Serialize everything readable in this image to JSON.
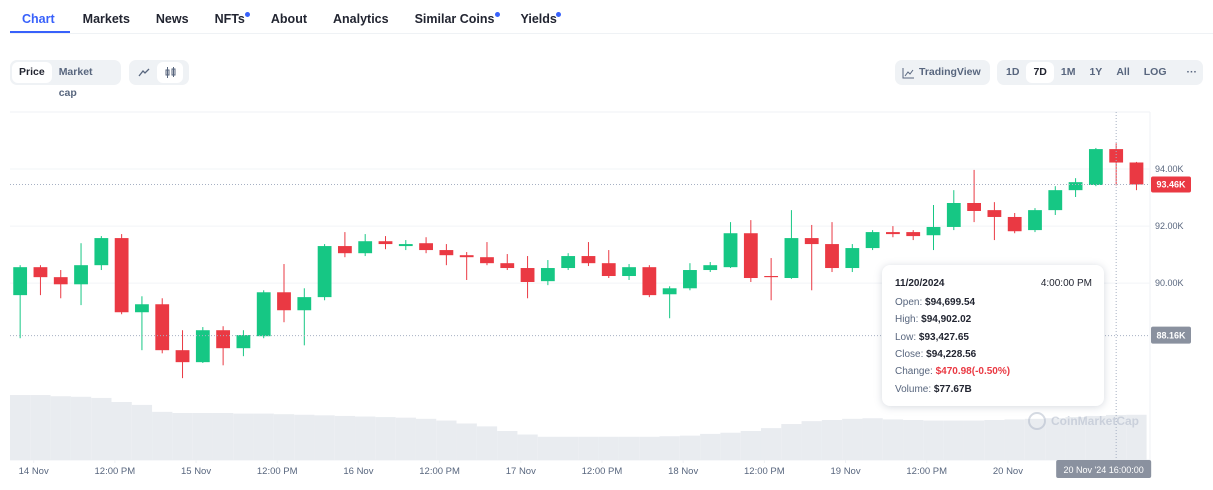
{
  "tabs": [
    {
      "label": "Chart",
      "active": true,
      "dot": false
    },
    {
      "label": "Markets",
      "active": false,
      "dot": false
    },
    {
      "label": "News",
      "active": false,
      "dot": false
    },
    {
      "label": "NFTs",
      "active": false,
      "dot": true
    },
    {
      "label": "About",
      "active": false,
      "dot": false
    },
    {
      "label": "Analytics",
      "active": false,
      "dot": false
    },
    {
      "label": "Similar Coins",
      "active": false,
      "dot": true
    },
    {
      "label": "Yields",
      "active": false,
      "dot": true
    }
  ],
  "toolbar": {
    "metric": [
      "Price",
      "Market cap"
    ],
    "tradingview": "TradingView",
    "ranges": [
      "1D",
      "7D",
      "1M",
      "1Y",
      "All",
      "LOG"
    ],
    "more": "···"
  },
  "chart_data": {
    "type": "candlestick",
    "x": [
      "2024-11-13T22:00",
      "2024-11-14T01:00",
      "2024-11-14T04:00",
      "2024-11-14T07:00",
      "2024-11-14T10:00",
      "2024-11-14T13:00",
      "2024-11-14T16:00",
      "2024-11-14T19:00",
      "2024-11-14T22:00",
      "2024-11-15T01:00",
      "2024-11-15T04:00",
      "2024-11-15T07:00",
      "2024-11-15T10:00",
      "2024-11-15T13:00",
      "2024-11-15T16:00",
      "2024-11-15T19:00",
      "2024-11-15T22:00",
      "2024-11-16T01:00",
      "2024-11-16T04:00",
      "2024-11-16T07:00",
      "2024-11-16T10:00",
      "2024-11-16T13:00",
      "2024-11-16T16:00",
      "2024-11-16T19:00",
      "2024-11-16T22:00",
      "2024-11-17T01:00",
      "2024-11-17T04:00",
      "2024-11-17T07:00",
      "2024-11-17T10:00",
      "2024-11-17T13:00",
      "2024-11-17T16:00",
      "2024-11-17T19:00",
      "2024-11-17T22:00",
      "2024-11-18T01:00",
      "2024-11-18T04:00",
      "2024-11-18T07:00",
      "2024-11-18T10:00",
      "2024-11-18T13:00",
      "2024-11-18T16:00",
      "2024-11-18T19:00",
      "2024-11-18T22:00",
      "2024-11-19T01:00",
      "2024-11-19T04:00",
      "2024-11-19T07:00",
      "2024-11-19T10:00",
      "2024-11-19T13:00",
      "2024-11-19T16:00",
      "2024-11-19T19:00",
      "2024-11-19T22:00",
      "2024-11-20T01:00",
      "2024-11-20T04:00",
      "2024-11-20T07:00",
      "2024-11-20T10:00",
      "2024-11-20T13:00",
      "2024-11-20T16:00",
      "2024-11-20T19:00"
    ],
    "open": [
      89580,
      90560,
      90210,
      89960,
      90630,
      91580,
      88980,
      89260,
      87650,
      87230,
      88350,
      87720,
      88140,
      89680,
      89050,
      89510,
      91300,
      91050,
      91470,
      91300,
      91400,
      91160,
      90980,
      90910,
      90700,
      90530,
      90070,
      90530,
      90950,
      90700,
      90250,
      90560,
      89610,
      89820,
      90460,
      90560,
      91750,
      90250,
      90180,
      91580,
      91370,
      90530,
      91230,
      91790,
      91790,
      91680,
      91970,
      92810,
      92560,
      92320,
      91860,
      92560,
      93260,
      93440,
      94699.54,
      94230
    ],
    "high": [
      90630,
      90630,
      90460,
      91400,
      91650,
      91720,
      89540,
      89470,
      88350,
      88460,
      88490,
      88350,
      89750,
      90670,
      89820,
      91370,
      91790,
      91720,
      91650,
      91510,
      91610,
      91370,
      91090,
      91440,
      91020,
      90950,
      90810,
      91050,
      91440,
      91160,
      90670,
      90630,
      89890,
      90700,
      90740,
      92140,
      92210,
      90880,
      92560,
      92040,
      92140,
      91370,
      91860,
      92000,
      91860,
      92740,
      93260,
      93970,
      92840,
      92460,
      92630,
      93400,
      93680,
      94740,
      94902.02,
      94250
    ],
    "low": [
      88070,
      89580,
      89470,
      89230,
      90460,
      88910,
      87650,
      87540,
      86670,
      87200,
      87120,
      87440,
      88070,
      88630,
      87820,
      89400,
      90910,
      90950,
      91190,
      91160,
      91050,
      90630,
      90110,
      90630,
      90460,
      89470,
      89930,
      90460,
      90600,
      90180,
      90110,
      89510,
      88770,
      89750,
      90390,
      90530,
      90040,
      89400,
      90150,
      89750,
      90390,
      90390,
      91160,
      91610,
      91510,
      91160,
      91860,
      92140,
      91510,
      91750,
      91790,
      92390,
      93020,
      93400,
      93427.65,
      93260
    ],
    "close": [
      90560,
      90210,
      89960,
      90630,
      91580,
      88980,
      89260,
      87650,
      87230,
      88350,
      87720,
      88180,
      89680,
      89050,
      89510,
      91300,
      91050,
      91470,
      91370,
      91370,
      91160,
      90980,
      90910,
      90700,
      90530,
      90040,
      90530,
      90950,
      90700,
      90250,
      90560,
      89580,
      89820,
      90460,
      90630,
      91750,
      90180,
      90210,
      91580,
      91370,
      90530,
      91230,
      91790,
      91720,
      91650,
      91970,
      92810,
      92530,
      92320,
      91820,
      92560,
      93260,
      93540,
      94700,
      94228.56,
      93460
    ],
    "up_color": "#16c784",
    "down_color": "#ea3943",
    "volume": {
      "values": [
        112,
        112,
        110,
        109,
        107,
        100,
        95,
        83,
        81,
        81,
        81,
        80,
        80,
        79,
        78,
        77,
        76,
        75,
        74,
        73,
        71,
        68,
        63,
        58,
        50,
        44,
        40,
        40,
        40,
        40,
        40,
        40,
        41,
        42,
        45,
        47,
        50,
        55,
        62,
        67,
        69,
        71,
        72,
        70,
        69,
        68,
        68,
        68,
        69,
        70,
        71,
        72,
        74,
        76,
        77.67,
        78
      ],
      "color": "#e9ecf0"
    },
    "xlim": [
      "2024-11-13T20:30",
      "2024-11-20T21:00"
    ],
    "xticks": [
      {
        "value": "2024-11-14T00:00",
        "label": "14 Nov"
      },
      {
        "value": "2024-11-14T12:00",
        "label": "12:00 PM"
      },
      {
        "value": "2024-11-15T00:00",
        "label": "15 Nov"
      },
      {
        "value": "2024-11-15T12:00",
        "label": "12:00 PM"
      },
      {
        "value": "2024-11-16T00:00",
        "label": "16 Nov"
      },
      {
        "value": "2024-11-16T12:00",
        "label": "12:00 PM"
      },
      {
        "value": "2024-11-17T00:00",
        "label": "17 Nov"
      },
      {
        "value": "2024-11-17T12:00",
        "label": "12:00 PM"
      },
      {
        "value": "2024-11-18T00:00",
        "label": "18 Nov"
      },
      {
        "value": "2024-11-18T12:00",
        "label": "12:00 PM"
      },
      {
        "value": "2024-11-19T00:00",
        "label": "19 Nov"
      },
      {
        "value": "2024-11-19T12:00",
        "label": "12:00 PM"
      },
      {
        "value": "2024-11-20T00:00",
        "label": "20 Nov"
      }
    ],
    "ylim": [
      83800,
      96000
    ],
    "yticks": [
      {
        "value": 90000,
        "label": "90.00K"
      },
      {
        "value": 92000,
        "label": "92.00K"
      },
      {
        "value": 94000,
        "label": "94.00K"
      }
    ],
    "grid": true,
    "current_price": {
      "value": 93460,
      "label": "93.46K",
      "color": "#ea3943"
    },
    "crosshair": {
      "price": {
        "value": 88160,
        "label": "88.16K"
      },
      "time": {
        "value": "2024-11-20T16:00",
        "label": "20 Nov '24 16:00:00"
      }
    },
    "tooltip": {
      "date": "11/20/2024",
      "time": "4:00:00 PM",
      "rows": [
        {
          "label": "Open:",
          "value": "$94,699.54"
        },
        {
          "label": "High:",
          "value": "$94,902.02"
        },
        {
          "label": "Low:",
          "value": "$93,427.65"
        },
        {
          "label": "Close:",
          "value": "$94,228.56"
        },
        {
          "label": "Change:",
          "value": "$470.98(-0.50%)"
        },
        {
          "label": "Volume:",
          "value": "$77.67B"
        }
      ]
    },
    "watermark": "CoinMarketCap"
  }
}
